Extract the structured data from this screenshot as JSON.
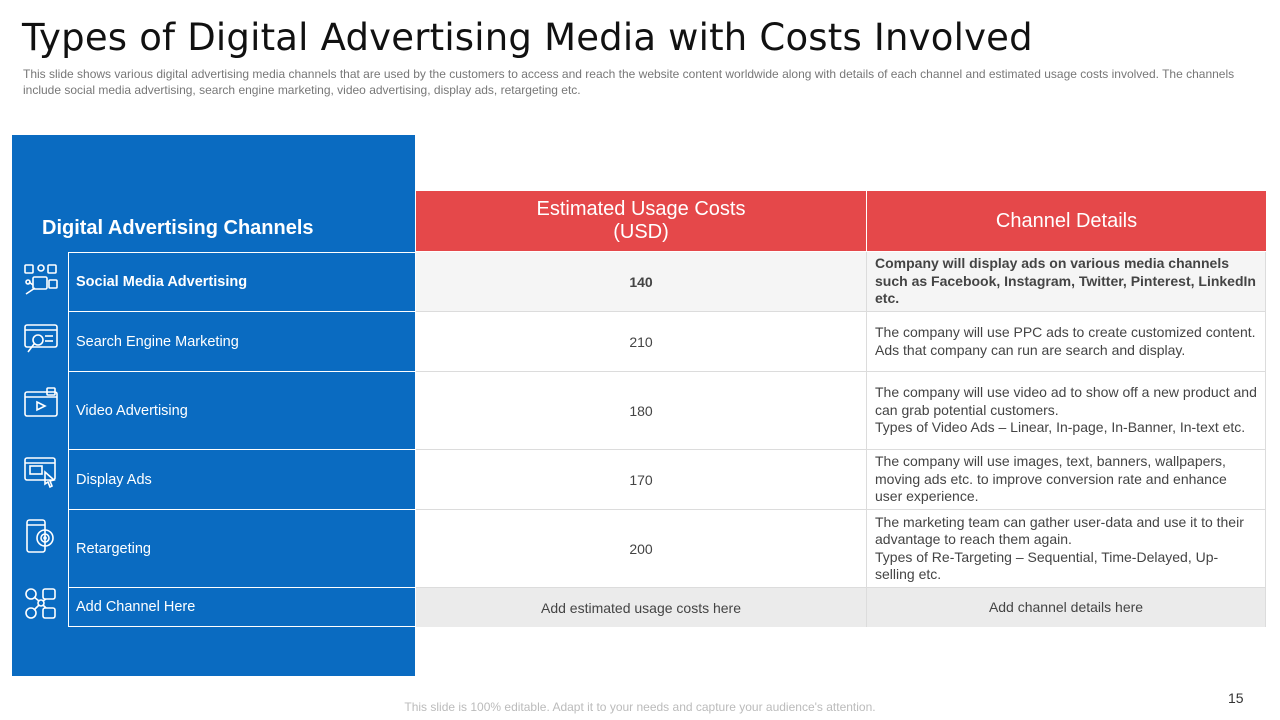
{
  "slide": {
    "title": "Types of Digital Advertising Media with Costs Involved",
    "subtitle": "This slide shows various  digital advertising  media channels that are used by the customers to access and reach the website content worldwide  along with details of each channel and estimated usage costs involved.  The channels include social media advertising,  search engine marketing, video  advertising, display ads, retargeting etc.",
    "footer": "This slide is 100%  editable. Adapt it to your needs and capture your audience's  attention.",
    "page_number": "15"
  },
  "table": {
    "channels_header": "Digital Advertising Channels",
    "cost_header": "Estimated Usage Costs\n(USD)",
    "details_header": "Channel Details",
    "rows": [
      {
        "icon": "social-media-icon",
        "channel": "Social Media Advertising",
        "cost": "140",
        "details": "Company will display ads on various media channels such as Facebook, Instagram,  Twitter, Pinterest, LinkedIn etc."
      },
      {
        "icon": "search-engine-icon",
        "channel": "Search Engine Marketing",
        "cost": "210",
        "details": "The company will use PPC ads to create customized content. Ads that company can run are search and display."
      },
      {
        "icon": "video-ad-icon",
        "channel": "Video  Advertising",
        "cost": "180",
        "details": "The company will use video ad to show off a new product and can grab potential  customers.\nTypes of Video Ads – Linear, In-page, In-Banner, In-text etc."
      },
      {
        "icon": "display-ad-icon",
        "channel": "Display Ads",
        "cost": "170",
        "details": "The company will use images, text, banners, wallpapers, moving ads etc. to improve conversion rate and enhance user experience."
      },
      {
        "icon": "retargeting-icon",
        "channel": "Retargeting",
        "cost": "200",
        "details": "The marketing team can gather user-data and use it to their advantage to reach them again.\nTypes of Re-Targeting – Sequential, Time-Delayed, Up-selling etc."
      },
      {
        "icon": "add-channel-icon",
        "channel": "Add Channel Here",
        "cost": "Add estimated usage costs here",
        "details": "Add channel details here"
      }
    ]
  },
  "colors": {
    "panel_blue": "#0a6bc1",
    "header_red": "#e5484a"
  }
}
